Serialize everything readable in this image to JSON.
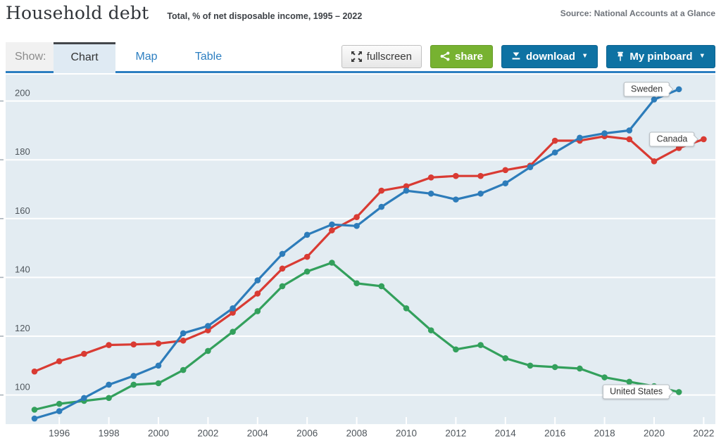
{
  "header": {
    "title": "Household debt",
    "subtitle": "Total, % of net disposable income, 1995 – 2022",
    "source": "Source: National Accounts at a Glance"
  },
  "toolbar": {
    "show_label": "Show:",
    "tabs": [
      {
        "label": "Chart",
        "active": true
      },
      {
        "label": "Map",
        "active": false
      },
      {
        "label": "Table",
        "active": false
      }
    ],
    "buttons": {
      "fullscreen": {
        "label": "fullscreen",
        "icon": "expand-arrows-icon"
      },
      "share": {
        "label": "share",
        "icon": "share-icon"
      },
      "download": {
        "label": "download",
        "icon": "download-arrow-icon",
        "caret": "▼"
      },
      "pinboard": {
        "label": "My pinboard",
        "icon": "pushpin-icon",
        "caret": "▼"
      }
    }
  },
  "colors": {
    "accent_blue": "#2d7fc1",
    "plot_background": "#e3ecf2",
    "gridline": "#ffffff",
    "axis_text": "#4f565c",
    "button_blue": "#0e72a3",
    "button_green": "#77b231",
    "sweden": "#2d7cba",
    "canada": "#d93b33",
    "united_states": "#33a05c"
  },
  "chart_data": {
    "type": "line",
    "title": "Household debt",
    "subtitle": "Total, % of net disposable income, 1995 - 2022",
    "xlabel": "",
    "ylabel": "% of net disposable income",
    "grid": true,
    "legend_position": "end-of-line labels",
    "xlim": [
      1993.8,
      2022.5
    ],
    "ylim": [
      90,
      209
    ],
    "x_ticks": [
      1996,
      1998,
      2000,
      2002,
      2004,
      2006,
      2008,
      2010,
      2012,
      2014,
      2016,
      2018,
      2020,
      2022
    ],
    "y_ticks": [
      100,
      120,
      140,
      160,
      180,
      200
    ],
    "series": [
      {
        "name": "Canada",
        "color": "#d93b33",
        "points": [
          [
            1995,
            108
          ],
          [
            1996,
            111.5
          ],
          [
            1997,
            114
          ],
          [
            1998,
            117
          ],
          [
            1999,
            117.2
          ],
          [
            2000,
            117.5
          ],
          [
            2001,
            118.5
          ],
          [
            2002,
            122
          ],
          [
            2003,
            128
          ],
          [
            2004,
            134.5
          ],
          [
            2005,
            143
          ],
          [
            2006,
            147
          ],
          [
            2007,
            156
          ],
          [
            2008,
            160.5
          ],
          [
            2009,
            169.5
          ],
          [
            2010,
            171
          ],
          [
            2011,
            174
          ],
          [
            2012,
            174.5
          ],
          [
            2013,
            174.5
          ],
          [
            2014,
            176.5
          ],
          [
            2015,
            178
          ],
          [
            2016,
            186.5
          ],
          [
            2017,
            186.5
          ],
          [
            2018,
            188
          ],
          [
            2019,
            187
          ],
          [
            2020,
            179.5
          ],
          [
            2021,
            184
          ],
          [
            2022,
            187
          ]
        ]
      },
      {
        "name": "United States",
        "color": "#33a05c",
        "points": [
          [
            1995,
            95
          ],
          [
            1996,
            97
          ],
          [
            1997,
            98
          ],
          [
            1998,
            99
          ],
          [
            1999,
            103.5
          ],
          [
            2000,
            104
          ],
          [
            2001,
            108.5
          ],
          [
            2002,
            115
          ],
          [
            2003,
            121.5
          ],
          [
            2004,
            128.5
          ],
          [
            2005,
            137
          ],
          [
            2006,
            142
          ],
          [
            2007,
            145
          ],
          [
            2008,
            138
          ],
          [
            2009,
            137
          ],
          [
            2010,
            129.5
          ],
          [
            2011,
            122
          ],
          [
            2012,
            115.5
          ],
          [
            2013,
            117
          ],
          [
            2014,
            112.5
          ],
          [
            2015,
            110
          ],
          [
            2016,
            109.5
          ],
          [
            2017,
            109
          ],
          [
            2018,
            106
          ],
          [
            2019,
            104.5
          ],
          [
            2020,
            103
          ],
          [
            2021,
            101
          ]
        ]
      },
      {
        "name": "Sweden",
        "color": "#2d7cba",
        "points": [
          [
            1995,
            92
          ],
          [
            1996,
            94.5
          ],
          [
            1997,
            99
          ],
          [
            1998,
            103.5
          ],
          [
            1999,
            106.5
          ],
          [
            2000,
            110
          ],
          [
            2001,
            121
          ],
          [
            2002,
            123.5
          ],
          [
            2003,
            129.5
          ],
          [
            2004,
            139
          ],
          [
            2005,
            148
          ],
          [
            2006,
            154.5
          ],
          [
            2007,
            158
          ],
          [
            2008,
            157.5
          ],
          [
            2009,
            164
          ],
          [
            2010,
            169.5
          ],
          [
            2011,
            168.5
          ],
          [
            2012,
            166.5
          ],
          [
            2013,
            168.5
          ],
          [
            2014,
            172
          ],
          [
            2015,
            177.5
          ],
          [
            2016,
            182.5
          ],
          [
            2017,
            187.5
          ],
          [
            2018,
            189
          ],
          [
            2019,
            190
          ],
          [
            2020,
            200.5
          ],
          [
            2021,
            204
          ]
        ]
      }
    ]
  }
}
